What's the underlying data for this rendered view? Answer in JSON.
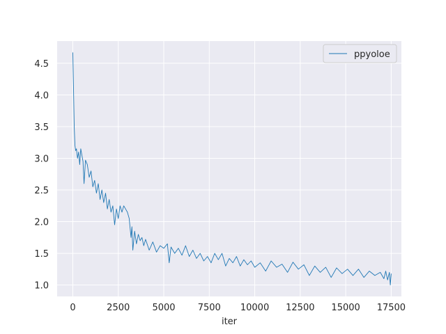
{
  "chart_data": {
    "type": "line",
    "title": "",
    "xlabel": "iter",
    "ylabel": "",
    "xlim": [
      -860,
      18060
    ],
    "ylim": [
      0.82,
      4.85
    ],
    "xticks": [
      0,
      2500,
      5000,
      7500,
      10000,
      12500,
      15000,
      17500
    ],
    "xtick_labels": [
      "0",
      "2500",
      "5000",
      "7500",
      "10000",
      "12500",
      "15000",
      "17500"
    ],
    "yticks": [
      1.0,
      1.5,
      2.0,
      2.5,
      3.0,
      3.5,
      4.0,
      4.5
    ],
    "ytick_labels": [
      "1.0",
      "1.5",
      "2.0",
      "2.5",
      "3.0",
      "3.5",
      "4.0",
      "4.5"
    ],
    "grid": true,
    "legend_position": "top-right",
    "series": [
      {
        "name": "ppyoloe",
        "color": "#1f77b4",
        "x": [
          0,
          40,
          80,
          120,
          160,
          200,
          260,
          320,
          380,
          440,
          500,
          560,
          620,
          700,
          800,
          900,
          1000,
          1100,
          1200,
          1300,
          1400,
          1500,
          1600,
          1700,
          1800,
          1900,
          2000,
          2100,
          2200,
          2300,
          2400,
          2500,
          2600,
          2700,
          2800,
          2900,
          3000,
          3100,
          3200,
          3250,
          3300,
          3400,
          3500,
          3600,
          3700,
          3800,
          3900,
          4000,
          4200,
          4400,
          4600,
          4800,
          5000,
          5200,
          5300,
          5400,
          5600,
          5800,
          6000,
          6200,
          6400,
          6600,
          6800,
          7000,
          7200,
          7400,
          7600,
          7800,
          8000,
          8200,
          8400,
          8600,
          8800,
          9000,
          9200,
          9400,
          9600,
          9800,
          10000,
          10300,
          10600,
          10900,
          11200,
          11500,
          11800,
          12100,
          12400,
          12700,
          13000,
          13300,
          13600,
          13900,
          14200,
          14500,
          14800,
          15100,
          15400,
          15700,
          16000,
          16300,
          16600,
          16900,
          17100,
          17200,
          17300,
          17400,
          17450,
          17500
        ],
        "y": [
          4.67,
          4.1,
          3.5,
          3.2,
          3.12,
          3.15,
          3.0,
          3.1,
          2.9,
          3.15,
          3.05,
          2.95,
          2.6,
          2.97,
          2.9,
          2.7,
          2.8,
          2.55,
          2.65,
          2.45,
          2.6,
          2.35,
          2.5,
          2.3,
          2.45,
          2.2,
          2.35,
          2.15,
          2.25,
          1.95,
          2.2,
          2.05,
          2.25,
          2.15,
          2.25,
          2.2,
          2.15,
          2.05,
          1.75,
          1.92,
          1.55,
          1.85,
          1.65,
          1.8,
          1.7,
          1.75,
          1.62,
          1.72,
          1.55,
          1.68,
          1.52,
          1.62,
          1.58,
          1.65,
          1.35,
          1.6,
          1.5,
          1.58,
          1.47,
          1.62,
          1.45,
          1.55,
          1.42,
          1.5,
          1.38,
          1.45,
          1.35,
          1.5,
          1.4,
          1.5,
          1.3,
          1.42,
          1.35,
          1.45,
          1.3,
          1.4,
          1.32,
          1.38,
          1.28,
          1.35,
          1.22,
          1.38,
          1.28,
          1.33,
          1.2,
          1.36,
          1.25,
          1.32,
          1.15,
          1.3,
          1.2,
          1.28,
          1.12,
          1.27,
          1.18,
          1.25,
          1.15,
          1.25,
          1.12,
          1.22,
          1.15,
          1.2,
          1.1,
          1.22,
          1.08,
          1.2,
          1.0,
          1.18
        ]
      }
    ]
  }
}
